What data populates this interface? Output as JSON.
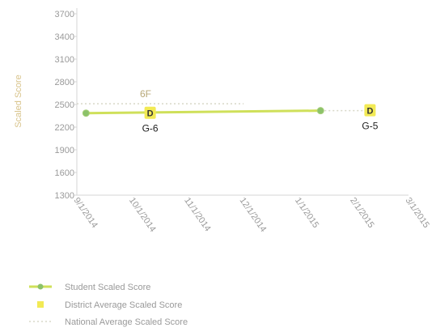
{
  "chart_data": {
    "type": "line",
    "ylabel": "Scaled Score",
    "xlabel": "",
    "ylim": [
      1300,
      3700
    ],
    "yticks": [
      1300,
      1600,
      1900,
      2200,
      2500,
      2800,
      3100,
      3400,
      3700
    ],
    "xticks": [
      "9/1/2014",
      "10/1/2014",
      "11/1/2014",
      "12/1/2014",
      "1/1/2015",
      "2/1/2015",
      "3/1/2015"
    ],
    "xlim": [
      "2014-09-01",
      "2015-03-01"
    ],
    "grid": false,
    "legend_placement": "bottom-left",
    "series": [
      {
        "name": "Student Scaled Score",
        "kind": "line",
        "color": "#cfe05a",
        "marker_color": "#8cc26a",
        "points": [
          {
            "x": "2014-09-06",
            "y": 2385
          },
          {
            "x": "2015-01-12",
            "y": 2418
          }
        ]
      },
      {
        "name": "District Average Scaled Score",
        "kind": "marker",
        "color": "#f2ea55",
        "points": [
          {
            "x": "2014-10-11",
            "y": 2385,
            "marker": "D",
            "label": "G-6"
          },
          {
            "x": "2015-02-08",
            "y": 2418,
            "marker": "D",
            "label": "G-5"
          }
        ]
      },
      {
        "name": "National Average Scaled Score",
        "kind": "dotted",
        "color": "#d8d8c8",
        "segments": [
          {
            "x1": "2014-09-01",
            "x2": "2014-12-01",
            "y": 2510,
            "label": "6F"
          },
          {
            "x1": "2015-01-12",
            "x2": "2015-02-08",
            "y": 2418
          }
        ]
      }
    ]
  }
}
